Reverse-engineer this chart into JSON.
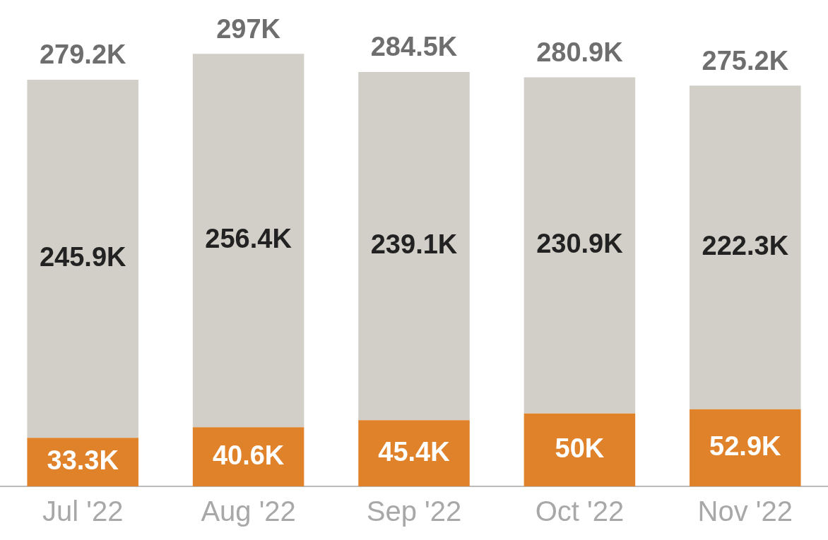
{
  "chart_data": {
    "type": "bar",
    "stacked": true,
    "categories": [
      "Jul '22",
      "Aug '22",
      "Sep '22",
      "Oct '22",
      "Nov '22"
    ],
    "series": [
      {
        "color": "#e0822a",
        "values": [
          33.3,
          40.6,
          45.4,
          50,
          52.9
        ],
        "value_labels": [
          "33.3K",
          "40.6K",
          "45.4K",
          "50K",
          "52.9K"
        ]
      },
      {
        "color": "#d1cfc7",
        "values": [
          245.9,
          256.4,
          239.1,
          230.9,
          222.3
        ],
        "value_labels": [
          "245.9K",
          "256.4K",
          "239.1K",
          "230.9K",
          "222.3K"
        ]
      }
    ],
    "totals": [
      "279.2K",
      "297K",
      "284.5K",
      "280.9K",
      "275.2K"
    ],
    "grid": false,
    "legend": false,
    "tick_labels": "x"
  }
}
